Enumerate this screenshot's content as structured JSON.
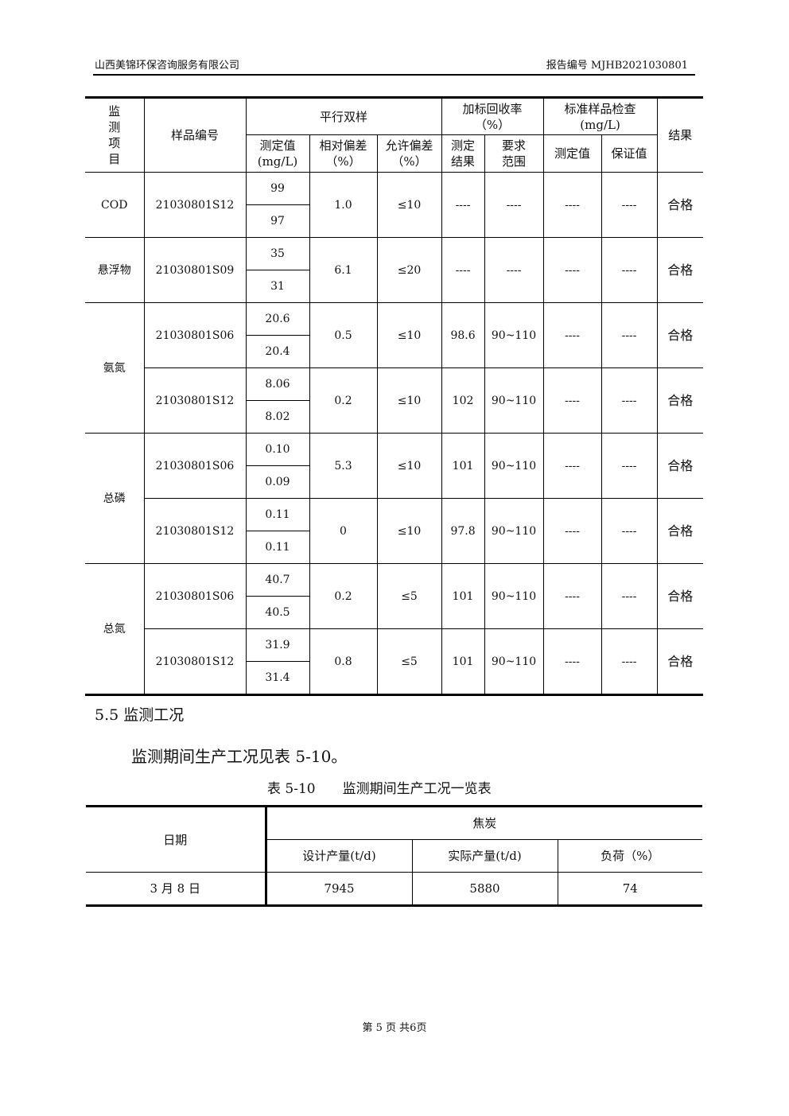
{
  "header": {
    "company": "山西美锦环保咨询服务有限公司",
    "report_no": "报告编号 MJHB2021030801"
  },
  "table1": {
    "headers": {
      "item": "监测项目",
      "sample": "样品编号",
      "parallel": "平行双样",
      "spike": "加标回收率（%）",
      "standard": "标准样品检查(mg/L)",
      "result": "结果",
      "measured": "测定值(mg/L)",
      "rel_dev": "相对偏差（%）",
      "allow_dev": "允许偏差（%）",
      "spike_result": "测定结果",
      "spike_range": "要求范围",
      "std_measured": "测定值",
      "std_guaranteed": "保证值"
    },
    "groups": [
      {
        "item": "COD",
        "samples": [
          {
            "id": "21030801S12",
            "values": [
              "99",
              "97"
            ],
            "rel": "1.0",
            "allow": "≤10",
            "rec": "----",
            "range": "----",
            "std_m": "----",
            "std_g": "----",
            "result": "合格"
          }
        ]
      },
      {
        "item": "悬浮物",
        "samples": [
          {
            "id": "21030801S09",
            "values": [
              "35",
              "31"
            ],
            "rel": "6.1",
            "allow": "≤20",
            "rec": "----",
            "range": "----",
            "std_m": "----",
            "std_g": "----",
            "result": "合格"
          }
        ]
      },
      {
        "item": "氨氮",
        "samples": [
          {
            "id": "21030801S06",
            "values": [
              "20.6",
              "20.4"
            ],
            "rel": "0.5",
            "allow": "≤10",
            "rec": "98.6",
            "range": "90~110",
            "std_m": "----",
            "std_g": "----",
            "result": "合格"
          },
          {
            "id": "21030801S12",
            "values": [
              "8.06",
              "8.02"
            ],
            "rel": "0.2",
            "allow": "≤10",
            "rec": "102",
            "range": "90~110",
            "std_m": "----",
            "std_g": "----",
            "result": "合格"
          }
        ]
      },
      {
        "item": "总磷",
        "samples": [
          {
            "id": "21030801S06",
            "values": [
              "0.10",
              "0.09"
            ],
            "rel": "5.3",
            "allow": "≤10",
            "rec": "101",
            "range": "90~110",
            "std_m": "----",
            "std_g": "----",
            "result": "合格"
          },
          {
            "id": "21030801S12",
            "values": [
              "0.11",
              "0.11"
            ],
            "rel": "0",
            "allow": "≤10",
            "rec": "97.8",
            "range": "90~110",
            "std_m": "----",
            "std_g": "----",
            "result": "合格"
          }
        ]
      },
      {
        "item": "总氮",
        "samples": [
          {
            "id": "21030801S06",
            "values": [
              "40.7",
              "40.5"
            ],
            "rel": "0.2",
            "allow": "≤5",
            "rec": "101",
            "range": "90~110",
            "std_m": "----",
            "std_g": "----",
            "result": "合格"
          },
          {
            "id": "21030801S12",
            "values": [
              "31.9",
              "31.4"
            ],
            "rel": "0.8",
            "allow": "≤5",
            "rec": "101",
            "range": "90~110",
            "std_m": "----",
            "std_g": "----",
            "result": "合格"
          }
        ]
      }
    ]
  },
  "section": {
    "title": "5.5 监测工况",
    "paragraph": "监测期间生产工况见表 5-10。",
    "caption": "表 5-10　　监测期间生产工况一览表"
  },
  "table2": {
    "date_header": "日期",
    "group_header": "焦炭",
    "cols": [
      "设计产量(t/d)",
      "实际产量(t/d)",
      "负荷（%）"
    ],
    "rows": [
      {
        "date": "3 月 8 日",
        "design": "7945",
        "actual": "5880",
        "load": "74"
      }
    ]
  },
  "footer": "第 5 页 共6页"
}
